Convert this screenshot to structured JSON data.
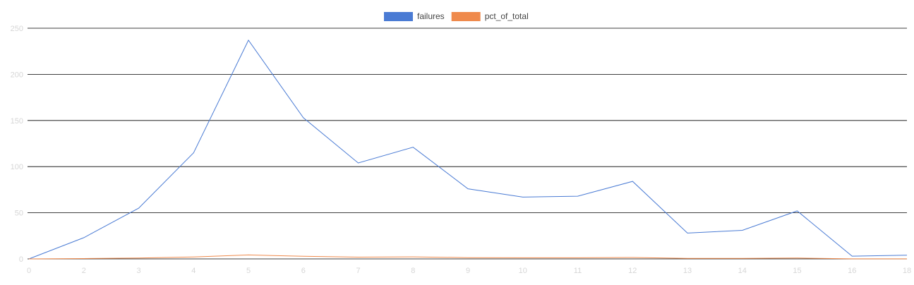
{
  "chart_data": {
    "type": "line",
    "title": "",
    "xlabel": "",
    "ylabel": "",
    "x": [
      "0",
      "2",
      "3",
      "4",
      "5",
      "6",
      "7",
      "8",
      "9",
      "10",
      "11",
      "12",
      "13",
      "14",
      "15",
      "16",
      "18"
    ],
    "series": [
      {
        "name": "failures",
        "color": "#4a7bd4",
        "values": [
          0,
          23,
          55,
          115,
          237,
          153,
          104,
          121,
          76,
          67,
          68,
          84,
          28,
          31,
          52,
          3,
          4
        ]
      },
      {
        "name": "pct_of_total",
        "color": "#ef8a4c",
        "values": [
          0,
          0.4,
          1,
          2.1,
          4.3,
          2.8,
          1.9,
          2.2,
          1.4,
          1.2,
          1.2,
          1.5,
          0.5,
          0.6,
          0.9,
          0.1,
          0.1
        ]
      }
    ],
    "ylim": [
      0,
      250
    ],
    "yticks": [
      "0",
      "50",
      "100",
      "150",
      "200",
      "250"
    ],
    "grid": true,
    "legend": "top-center"
  }
}
